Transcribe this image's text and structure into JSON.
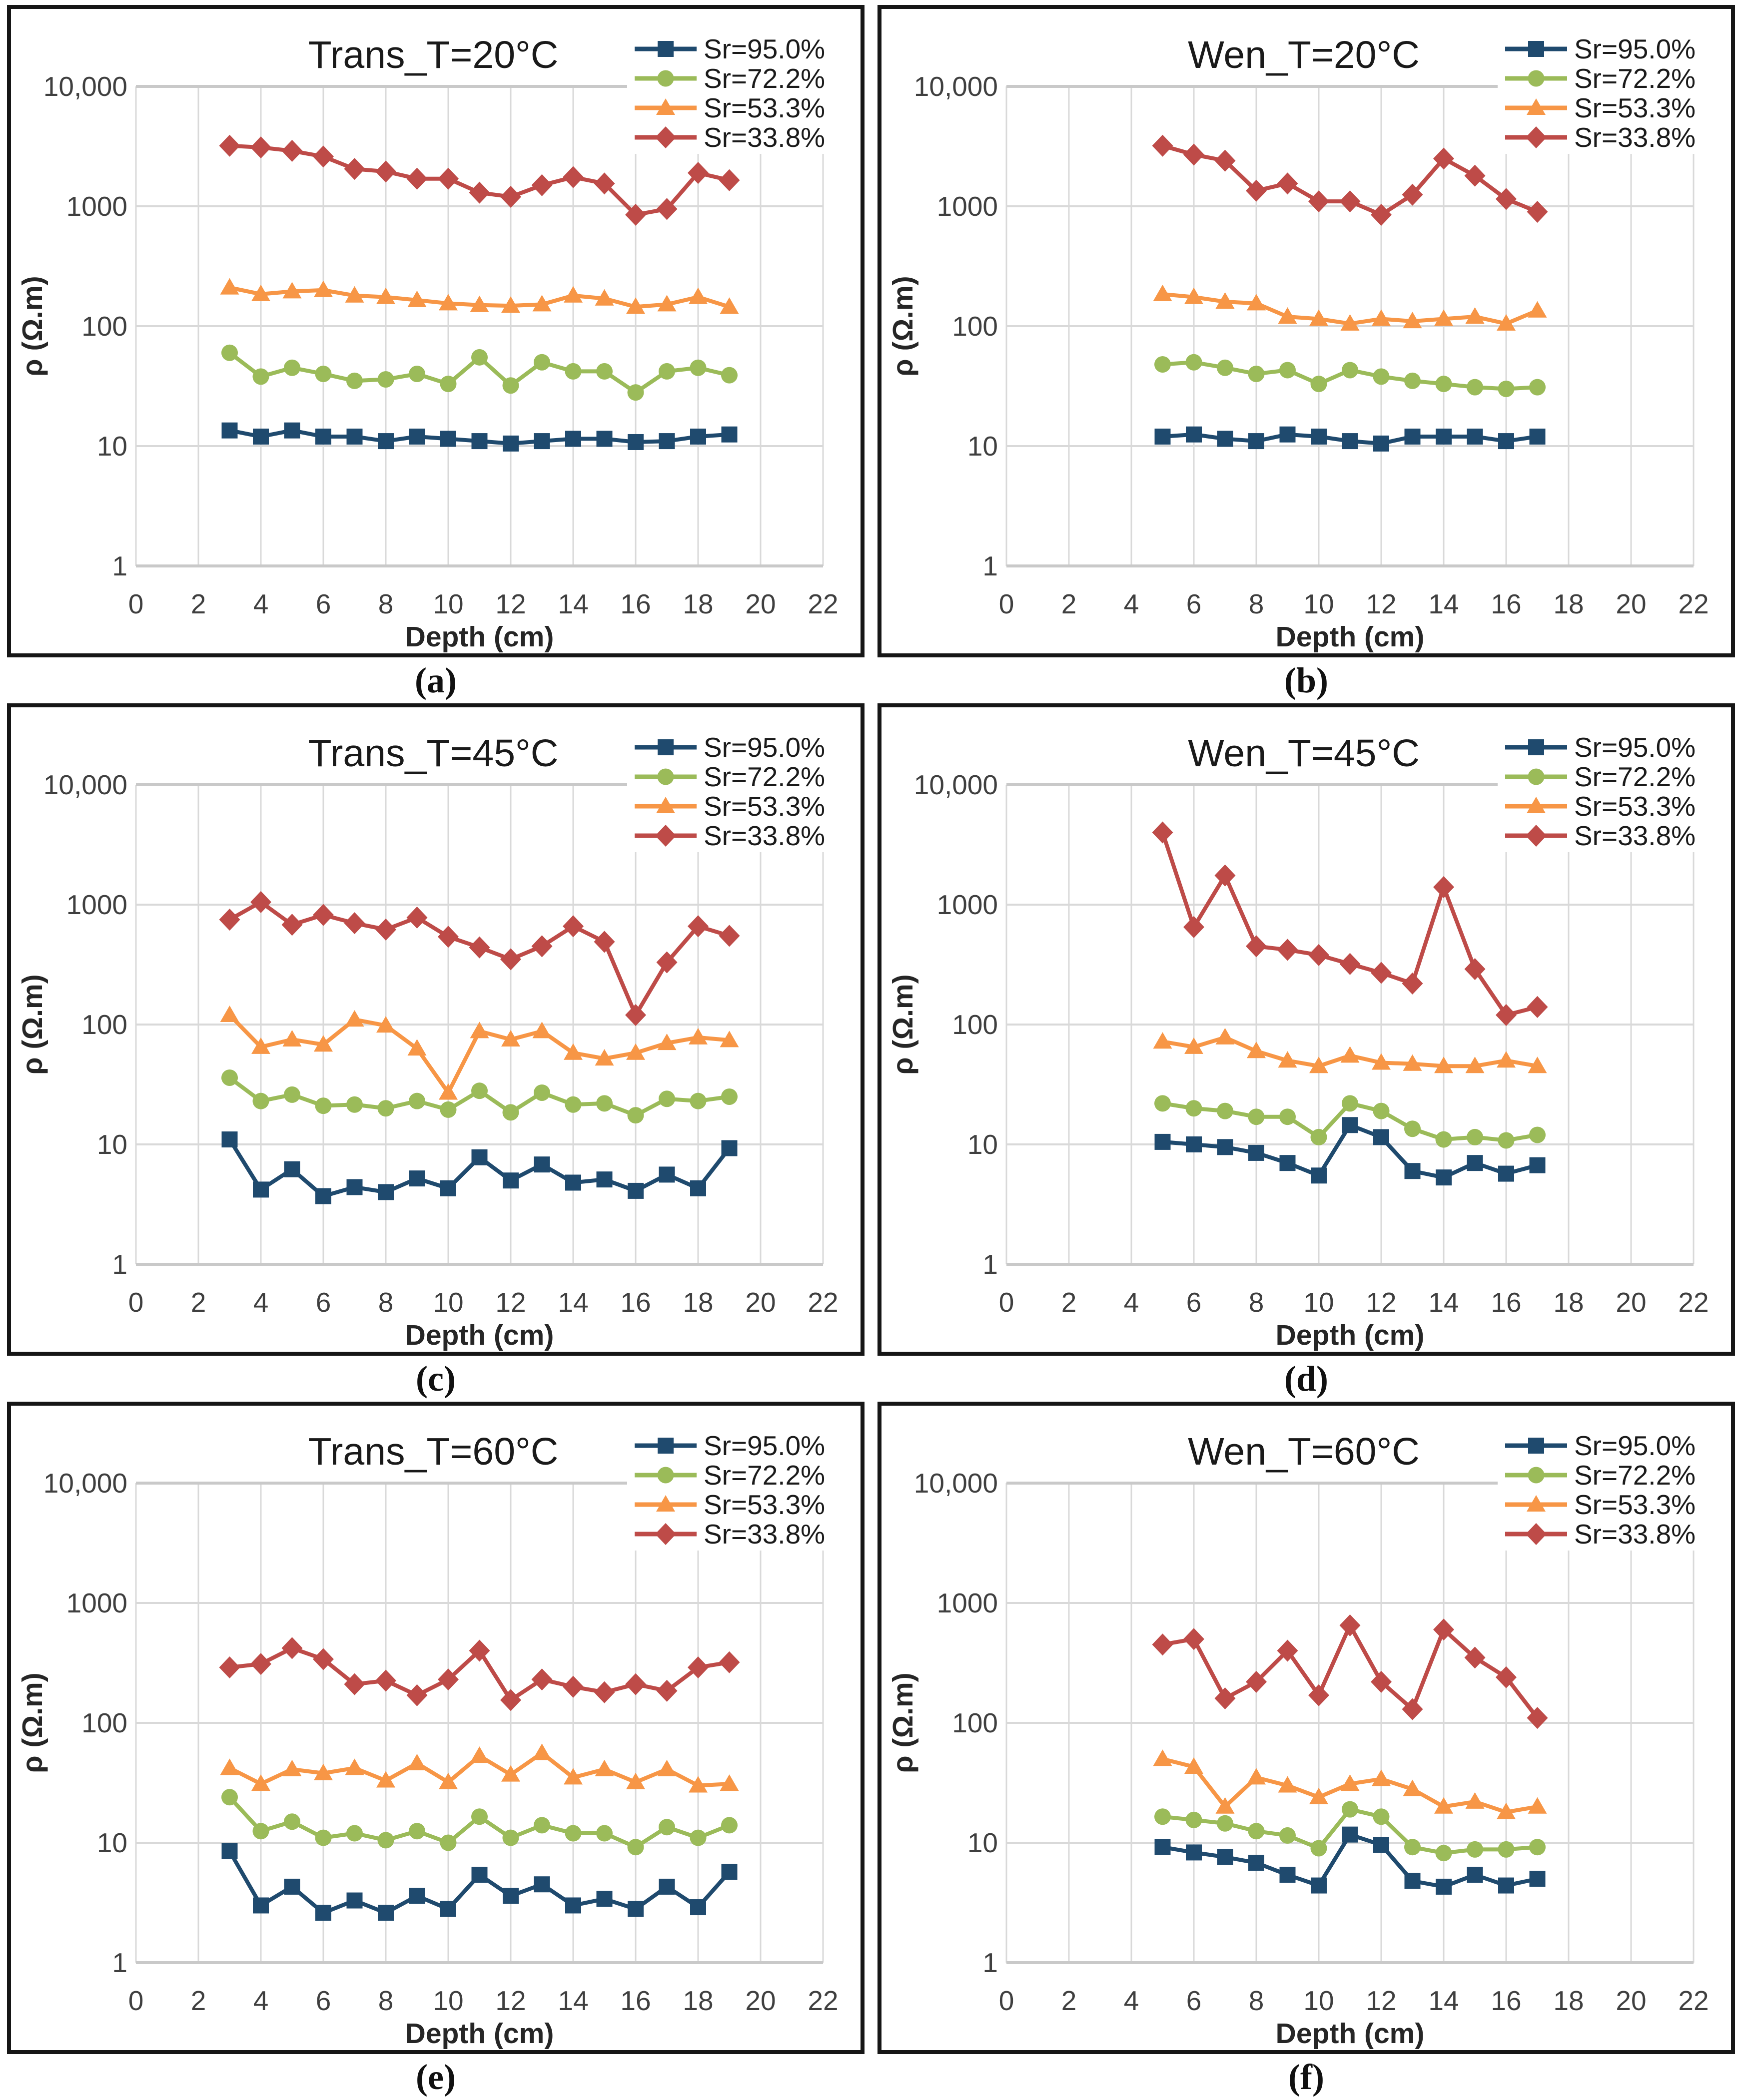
{
  "figure": {
    "xlabel": "Depth (cm)",
    "ylabel": "ρ (Ω.m)",
    "x_ticks": [
      0,
      2,
      4,
      6,
      8,
      10,
      12,
      14,
      16,
      18,
      20,
      22
    ],
    "x_range": [
      0,
      22
    ],
    "y_scale": "log",
    "y_range": [
      1,
      10000
    ],
    "y_tick_labels": [
      "1",
      "10",
      "100",
      "1000",
      "10,000"
    ],
    "grid": true,
    "legend_position": "top-right",
    "series_styles": [
      {
        "name": "Sr=95.0%",
        "marker": "square",
        "color": "#1F4A6E"
      },
      {
        "name": "Sr=72.2%",
        "marker": "circle",
        "color": "#9BBB59"
      },
      {
        "name": "Sr=53.3%",
        "marker": "triangle",
        "color": "#F79646"
      },
      {
        "name": "Sr=33.8%",
        "marker": "diamond",
        "color": "#BE4B48"
      }
    ],
    "colors": {
      "grid": "#D9D9D9",
      "plot_border": "#C9C9C9",
      "tick_text": "#3F3F3F",
      "title_text": "#1A1A1A"
    }
  },
  "chart_data": [
    {
      "id": "a",
      "type": "line",
      "caption": "(a)",
      "title": "Trans_T=20°C",
      "x": [
        3,
        4,
        5,
        6,
        7,
        8,
        9,
        10,
        11,
        12,
        13,
        14,
        15,
        16,
        17,
        18,
        19
      ],
      "series": [
        {
          "name": "Sr=95.0%",
          "values": [
            13.5,
            12,
            13.5,
            12,
            12,
            11,
            12,
            11.5,
            11,
            10.5,
            11,
            11.5,
            11.5,
            10.8,
            11,
            12,
            12.5
          ]
        },
        {
          "name": "Sr=72.2%",
          "values": [
            60,
            38,
            45,
            40,
            35,
            36,
            40,
            33,
            55,
            32,
            50,
            42,
            42,
            28,
            42,
            45,
            39
          ]
        },
        {
          "name": "Sr=53.3%",
          "values": [
            210,
            185,
            195,
            200,
            180,
            175,
            165,
            155,
            150,
            148,
            152,
            180,
            170,
            145,
            152,
            175,
            145
          ]
        },
        {
          "name": "Sr=33.8%",
          "values": [
            3200,
            3100,
            2900,
            2600,
            2050,
            1950,
            1700,
            1700,
            1300,
            1200,
            1500,
            1750,
            1550,
            850,
            950,
            1900,
            1650
          ]
        }
      ]
    },
    {
      "id": "b",
      "type": "line",
      "caption": "(b)",
      "title": "Wen_T=20°C",
      "x": [
        5,
        6,
        7,
        8,
        9,
        10,
        11,
        12,
        13,
        14,
        15,
        16,
        17
      ],
      "series": [
        {
          "name": "Sr=95.0%",
          "values": [
            12,
            12.5,
            11.5,
            11,
            12.5,
            12,
            11,
            10.5,
            12,
            12,
            12,
            11,
            12
          ]
        },
        {
          "name": "Sr=72.2%",
          "values": [
            48,
            50,
            45,
            40,
            43,
            33,
            43,
            38,
            35,
            33,
            31,
            30,
            31
          ]
        },
        {
          "name": "Sr=53.3%",
          "values": [
            185,
            175,
            160,
            155,
            120,
            115,
            105,
            115,
            110,
            115,
            120,
            105,
            135
          ]
        },
        {
          "name": "Sr=33.8%",
          "values": [
            3200,
            2700,
            2400,
            1350,
            1550,
            1100,
            1100,
            850,
            1250,
            2500,
            1800,
            1150,
            900
          ]
        }
      ]
    },
    {
      "id": "c",
      "type": "line",
      "caption": "(c)",
      "title": "Trans_T=45°C",
      "x": [
        3,
        4,
        5,
        6,
        7,
        8,
        9,
        10,
        11,
        12,
        13,
        14,
        15,
        16,
        17,
        18,
        19
      ],
      "series": [
        {
          "name": "Sr=95.0%",
          "values": [
            11,
            4.2,
            6.2,
            3.7,
            4.4,
            4.0,
            5.2,
            4.3,
            7.8,
            5.0,
            6.8,
            4.8,
            5.1,
            4.1,
            5.6,
            4.3,
            9.3
          ]
        },
        {
          "name": "Sr=72.2%",
          "values": [
            36,
            23,
            26,
            21,
            21.5,
            20,
            23,
            19.5,
            28,
            18.5,
            27,
            21.5,
            22,
            17.5,
            24,
            23,
            25
          ]
        },
        {
          "name": "Sr=53.3%",
          "values": [
            120,
            65,
            75,
            68,
            110,
            98,
            63,
            27,
            88,
            75,
            88,
            58,
            52,
            58,
            70,
            78,
            74
          ]
        },
        {
          "name": "Sr=33.8%",
          "values": [
            750,
            1050,
            680,
            820,
            700,
            620,
            780,
            540,
            440,
            350,
            450,
            660,
            490,
            120,
            330,
            660,
            550
          ]
        }
      ]
    },
    {
      "id": "d",
      "type": "line",
      "caption": "(d)",
      "title": "Wen_T=45°C",
      "x": [
        5,
        6,
        7,
        8,
        9,
        10,
        11,
        12,
        13,
        14,
        15,
        16,
        17
      ],
      "series": [
        {
          "name": "Sr=95.0%",
          "values": [
            10.5,
            10,
            9.5,
            8.5,
            7,
            5.5,
            14.5,
            11.5,
            6,
            5.3,
            7,
            5.7,
            6.7
          ]
        },
        {
          "name": "Sr=72.2%",
          "values": [
            22,
            20,
            19,
            17,
            17,
            11.5,
            22,
            19,
            13.5,
            11,
            11.5,
            10.8,
            12
          ]
        },
        {
          "name": "Sr=53.3%",
          "values": [
            72,
            65,
            78,
            60,
            50,
            45,
            55,
            48,
            47,
            45,
            45,
            50,
            45
          ]
        },
        {
          "name": "Sr=33.8%",
          "values": [
            4000,
            650,
            1750,
            450,
            420,
            380,
            320,
            270,
            220,
            1400,
            290,
            120,
            140
          ]
        }
      ]
    },
    {
      "id": "e",
      "type": "line",
      "caption": "(e)",
      "title": "Trans_T=60°C",
      "x": [
        3,
        4,
        5,
        6,
        7,
        8,
        9,
        10,
        11,
        12,
        13,
        14,
        15,
        16,
        17,
        18,
        19
      ],
      "series": [
        {
          "name": "Sr=95.0%",
          "values": [
            8.5,
            3.0,
            4.3,
            2.6,
            3.3,
            2.6,
            3.6,
            2.8,
            5.4,
            3.6,
            4.5,
            3.0,
            3.4,
            2.8,
            4.3,
            2.9,
            5.7
          ]
        },
        {
          "name": "Sr=72.2%",
          "values": [
            24,
            12.5,
            15,
            11,
            12,
            10.5,
            12.5,
            10,
            16.5,
            11,
            14,
            12,
            12,
            9.2,
            13.5,
            11,
            14
          ]
        },
        {
          "name": "Sr=53.3%",
          "values": [
            42,
            31,
            41,
            38,
            42,
            33,
            46,
            32,
            53,
            37,
            56,
            35,
            41,
            32,
            41,
            30,
            31
          ]
        },
        {
          "name": "Sr=33.8%",
          "values": [
            290,
            310,
            420,
            340,
            210,
            225,
            170,
            230,
            400,
            155,
            230,
            200,
            180,
            210,
            185,
            290,
            320
          ]
        }
      ]
    },
    {
      "id": "f",
      "type": "line",
      "caption": "(f)",
      "title": "Wen_T=60°C",
      "x": [
        5,
        6,
        7,
        8,
        9,
        10,
        11,
        12,
        13,
        14,
        15,
        16,
        17
      ],
      "series": [
        {
          "name": "Sr=95.0%",
          "values": [
            9.2,
            8.3,
            7.6,
            6.8,
            5.4,
            4.4,
            11.7,
            9.6,
            4.8,
            4.3,
            5.4,
            4.4,
            5.0
          ]
        },
        {
          "name": "Sr=72.2%",
          "values": [
            16.5,
            15.5,
            14.5,
            12.5,
            11.5,
            9,
            19,
            16.5,
            9.2,
            8.2,
            8.8,
            8.8,
            9.2
          ]
        },
        {
          "name": "Sr=53.3%",
          "values": [
            50,
            43,
            20,
            35,
            30,
            24,
            31,
            34,
            28,
            20,
            22,
            18,
            20
          ]
        },
        {
          "name": "Sr=33.8%",
          "values": [
            450,
            500,
            160,
            220,
            400,
            170,
            650,
            220,
            130,
            600,
            350,
            240,
            110
          ]
        }
      ]
    }
  ]
}
